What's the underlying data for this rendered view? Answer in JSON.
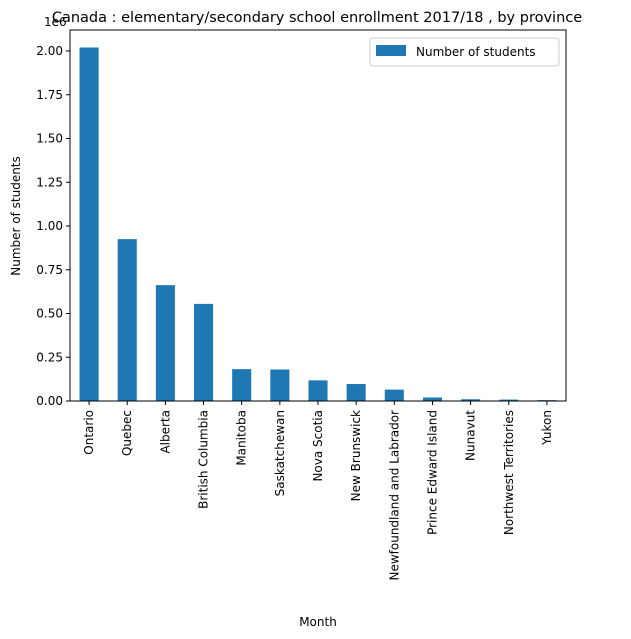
{
  "chart_data": {
    "type": "bar",
    "title": "Canada : elementary/secondary school enrollment 2017/18 , by province",
    "xlabel": "Month",
    "ylabel": "Number of students",
    "offset_label": "1e6",
    "categories": [
      "Ontario",
      "Quebec",
      "Alberta",
      "British Columbia",
      "Manitoba",
      "Saskatchewan",
      "Nova Scotia",
      "New Brunswick",
      "Newfoundland and Labrador",
      "Prince Edward Island",
      "Nunavut",
      "Northwest Territories",
      "Yukon"
    ],
    "series": [
      {
        "name": "Number of students",
        "color": "#1f77b4",
        "values": [
          2020000,
          925000,
          662000,
          555000,
          182000,
          180000,
          118000,
          97000,
          65000,
          20000,
          10000,
          8000,
          5000
        ]
      }
    ],
    "ylim": [
      0,
      2.12
    ],
    "y_scale_divisor": 1000000,
    "yticks": [
      "0.00",
      "0.25",
      "0.50",
      "0.75",
      "1.00",
      "1.25",
      "1.50",
      "1.75",
      "2.00"
    ],
    "legend_position": "top-right",
    "grid": false
  }
}
